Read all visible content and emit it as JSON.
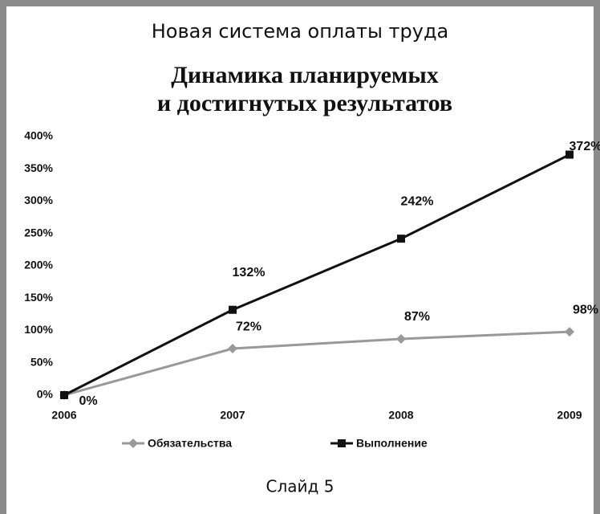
{
  "header": "Новая система оплаты труда",
  "footer": "Слайд 5",
  "chart_data": {
    "type": "line",
    "title": [
      "Динамика планируемых",
      "и достигнутых результатов"
    ],
    "x": [
      2006,
      2007,
      2008,
      2009
    ],
    "xlim": [
      2006,
      2009
    ],
    "xticks": [
      2006,
      2007,
      2008,
      2009
    ],
    "ylim": [
      0,
      400
    ],
    "yticks": [
      {
        "value": 0,
        "label": "0%"
      },
      {
        "value": 50,
        "label": "50%"
      },
      {
        "value": 100,
        "label": "100%"
      },
      {
        "value": 150,
        "label": "150%"
      },
      {
        "value": 200,
        "label": "200%"
      },
      {
        "value": 250,
        "label": "250%"
      },
      {
        "value": 300,
        "label": "300%"
      },
      {
        "value": 350,
        "label": "350%"
      },
      {
        "value": 400,
        "label": "400%"
      }
    ],
    "grid": false,
    "legend": "bottom",
    "series": [
      {
        "name": "Обязательства",
        "color": "#999999",
        "marker": "diamond",
        "values": [
          0,
          72,
          87,
          98
        ],
        "value_labels": [
          "0%",
          "72%",
          "87%",
          "98%"
        ]
      },
      {
        "name": "Выполнение",
        "color": "#111111",
        "marker": "square",
        "values": [
          0,
          132,
          242,
          372
        ],
        "value_labels": [
          null,
          "132%",
          "242%",
          "372%"
        ]
      }
    ]
  }
}
